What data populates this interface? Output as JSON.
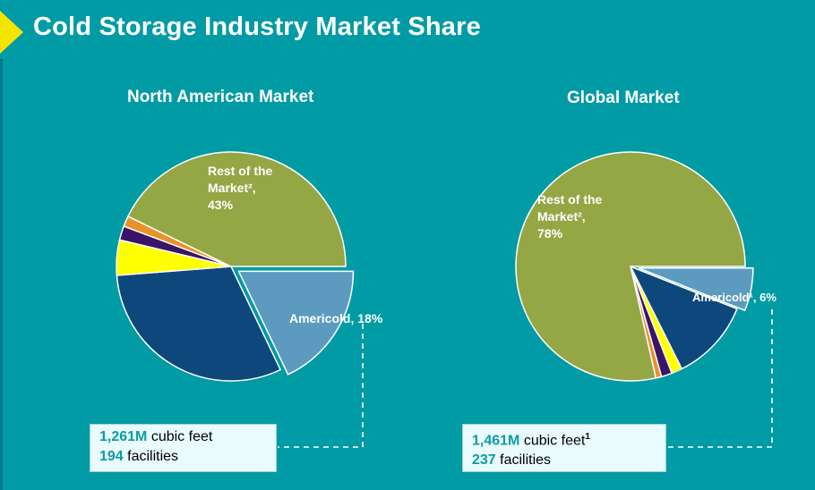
{
  "title": "Cold Storage Industry Market Share",
  "colors": {
    "background": "#009ba4",
    "rest": "#95a644",
    "americold": "#5c9bbf",
    "navy": "#0e477b",
    "yellow": "#ffff00",
    "purple": "#3a1466",
    "orange": "#e8922a",
    "accent_text": "#0e9aa7"
  },
  "chart_data": [
    {
      "type": "pie",
      "title": "North American Market",
      "slices": [
        {
          "label": "Americold, 18%",
          "value": 18,
          "color": "#5c9bbf",
          "exploded": true
        },
        {
          "value": 31,
          "color": "#0e477b"
        },
        {
          "value": 5,
          "color": "#ffff00"
        },
        {
          "value": 2,
          "color": "#3a1466"
        },
        {
          "value": 1.5,
          "color": "#e8922a"
        },
        {
          "label": "Rest of the Market², 43%",
          "value": 43,
          "color": "#95a644"
        }
      ],
      "rest_label_lines": [
        "Rest of the",
        "Market²,",
        "43%"
      ],
      "americold_label": "Americold, 18%",
      "box": {
        "volume_value": "1,261M",
        "volume_unit": " cubic feet",
        "facilities_value": "194",
        "facilities_unit": " facilities"
      }
    },
    {
      "type": "pie",
      "title": "Global Market",
      "slices": [
        {
          "label": "Americold¹, 6%",
          "value": 6,
          "color": "#5c9bbf",
          "exploded": true
        },
        {
          "value": 11.5,
          "color": "#0e477b"
        },
        {
          "value": 1.5,
          "color": "#ffff00"
        },
        {
          "value": 1.5,
          "color": "#3a1466"
        },
        {
          "value": 0.8,
          "color": "#e8922a"
        },
        {
          "label": "Rest of the Market², 78%",
          "value": 78,
          "color": "#95a644"
        }
      ],
      "rest_label_lines": [
        "Rest of the",
        "Market²,",
        "78%"
      ],
      "americold_label": "Americold¹, 6%",
      "box": {
        "volume_value": "1,461M",
        "volume_unit": " cubic feet",
        "volume_sup": "1",
        "facilities_value": "237",
        "facilities_unit": " facilities"
      }
    }
  ]
}
